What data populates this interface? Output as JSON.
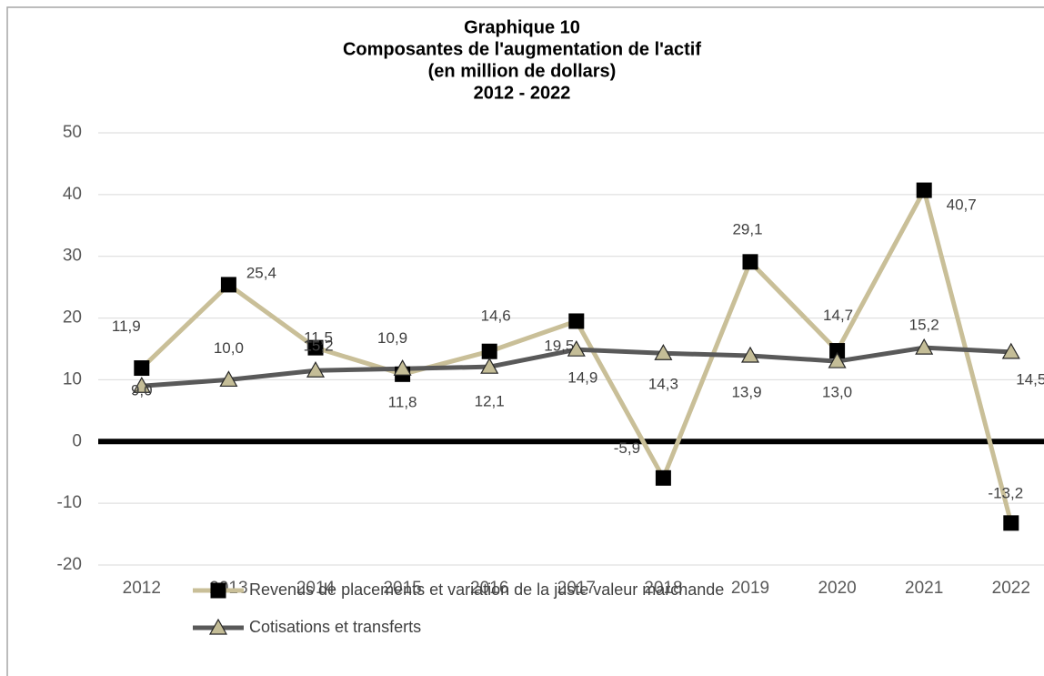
{
  "chart_data": {
    "type": "line",
    "title": [
      "Graphique 10",
      "Composantes de l'augmentation de l'actif",
      "(en million de dollars)",
      "2012 - 2022"
    ],
    "categories": [
      "2012",
      "2013",
      "2014",
      "2015",
      "2016",
      "2017",
      "2018",
      "2019",
      "2020",
      "2021",
      "2022"
    ],
    "series": [
      {
        "name": "Revenus de placements et variation de la juste valeur marchande",
        "color": "#c9bf98",
        "marker": "square",
        "marker_color": "#000000",
        "values": [
          11.9,
          25.4,
          15.2,
          10.9,
          14.6,
          19.5,
          -5.9,
          29.1,
          14.7,
          40.7,
          -13.2
        ],
        "value_labels": [
          "11,9",
          "25,4",
          "15,2",
          "10,9",
          "14,6",
          "19,5",
          "-5,9",
          "29,1",
          "14,7",
          "40,7",
          "-13,2"
        ]
      },
      {
        "name": "Cotisations et transferts",
        "color": "#595959",
        "marker": "triangle",
        "marker_color": "#c4bd97",
        "values": [
          9.0,
          10.0,
          11.5,
          11.8,
          12.1,
          14.9,
          14.3,
          13.9,
          13.0,
          15.2,
          14.5
        ],
        "value_labels": [
          "9,0",
          "10,0",
          "11,5",
          "11,8",
          "12,1",
          "14,9",
          "14,3",
          "13,9",
          "13,0",
          "15,2",
          "14,5"
        ]
      }
    ],
    "ylim": [
      -20,
      50
    ],
    "yticks": [
      -20,
      -10,
      0,
      10,
      20,
      30,
      40,
      50
    ],
    "grid": true,
    "legend": "bottom"
  }
}
